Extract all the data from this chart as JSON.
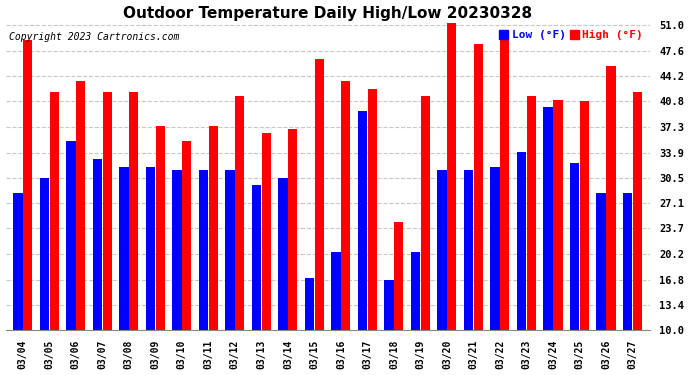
{
  "title": "Outdoor Temperature Daily High/Low 20230328",
  "copyright": "Copyright 2023 Cartronics.com",
  "dates": [
    "03/04",
    "03/05",
    "03/06",
    "03/07",
    "03/08",
    "03/09",
    "03/10",
    "03/11",
    "03/12",
    "03/13",
    "03/14",
    "03/15",
    "03/16",
    "03/17",
    "03/18",
    "03/19",
    "03/20",
    "03/21",
    "03/22",
    "03/23",
    "03/24",
    "03/25",
    "03/26",
    "03/27"
  ],
  "high": [
    49.0,
    42.0,
    43.5,
    42.0,
    42.0,
    37.5,
    35.5,
    37.5,
    41.5,
    36.5,
    37.0,
    46.5,
    43.5,
    42.5,
    24.5,
    41.5,
    51.5,
    48.5,
    49.5,
    41.5,
    41.0,
    40.8,
    45.5,
    42.0
  ],
  "low": [
    28.5,
    30.5,
    35.5,
    33.0,
    32.0,
    32.0,
    31.5,
    31.5,
    31.5,
    29.5,
    30.5,
    17.0,
    20.5,
    39.5,
    16.8,
    20.5,
    31.5,
    31.5,
    32.0,
    34.0,
    40.0,
    32.5,
    28.5,
    28.5
  ],
  "high_color": "#ff0000",
  "low_color": "#0000ff",
  "bg_color": "#ffffff",
  "grid_color": "#c8c8c8",
  "ymin": 10.0,
  "ymax": 51.0,
  "yticks": [
    10.0,
    13.4,
    16.8,
    20.2,
    23.7,
    27.1,
    30.5,
    33.9,
    37.3,
    40.8,
    44.2,
    47.6,
    51.0
  ],
  "title_fontsize": 11,
  "copyright_fontsize": 7,
  "legend_fontsize": 8,
  "bar_width": 0.35,
  "bar_gap": 0.02
}
